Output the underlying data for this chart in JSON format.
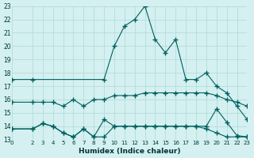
{
  "xlabel": "Humidex (Indice chaleur)",
  "bg_color": "#d4f0f0",
  "grid_color": "#b0d8d8",
  "line_color": "#005f5f",
  "series1": {
    "x": [
      0,
      2,
      9,
      10,
      11,
      12,
      13,
      14,
      15,
      16,
      17,
      18,
      19,
      20,
      21,
      22,
      23
    ],
    "y": [
      17.5,
      17.5,
      17.5,
      20.0,
      21.5,
      22.0,
      23.0,
      20.5,
      19.5,
      20.5,
      17.5,
      17.5,
      18.0,
      17.0,
      16.5,
      15.5,
      14.5
    ]
  },
  "series2": {
    "x": [
      0,
      2,
      3,
      4,
      5,
      6,
      7,
      8,
      9,
      10,
      11,
      12,
      13,
      14,
      15,
      16,
      17,
      18,
      19,
      20,
      21,
      22,
      23
    ],
    "y": [
      15.8,
      15.8,
      15.8,
      15.8,
      15.5,
      16.0,
      15.5,
      16.0,
      16.0,
      16.3,
      16.3,
      16.3,
      16.5,
      16.5,
      16.5,
      16.5,
      16.5,
      16.5,
      16.5,
      16.3,
      16.0,
      15.8,
      15.5
    ]
  },
  "series3": {
    "x": [
      0,
      2,
      3,
      4,
      5,
      6,
      7,
      8,
      9,
      10,
      11,
      12,
      13,
      14,
      15,
      16,
      17,
      18,
      19,
      20,
      21,
      22,
      23
    ],
    "y": [
      13.8,
      13.8,
      14.2,
      14.0,
      13.5,
      13.2,
      13.8,
      13.2,
      14.5,
      14.0,
      14.0,
      14.0,
      14.0,
      14.0,
      14.0,
      14.0,
      14.0,
      14.0,
      14.0,
      15.3,
      14.3,
      13.3,
      13.2
    ]
  },
  "series4": {
    "x": [
      0,
      2,
      3,
      4,
      5,
      6,
      7,
      8,
      9,
      10,
      11,
      12,
      13,
      14,
      15,
      16,
      17,
      18,
      19,
      20,
      21,
      22,
      23
    ],
    "y": [
      13.8,
      13.8,
      14.2,
      14.0,
      13.5,
      13.2,
      13.8,
      13.2,
      13.2,
      14.0,
      14.0,
      14.0,
      14.0,
      14.0,
      14.0,
      14.0,
      14.0,
      14.0,
      13.8,
      13.5,
      13.2,
      13.2,
      13.2
    ]
  },
  "ylim": [
    13,
    23
  ],
  "xlim": [
    0,
    23
  ],
  "yticks": [
    13,
    14,
    15,
    16,
    17,
    18,
    19,
    20,
    21,
    22,
    23
  ],
  "xticks": [
    0,
    2,
    3,
    4,
    5,
    6,
    7,
    8,
    9,
    10,
    11,
    12,
    13,
    14,
    15,
    16,
    17,
    18,
    19,
    20,
    21,
    22,
    23
  ]
}
